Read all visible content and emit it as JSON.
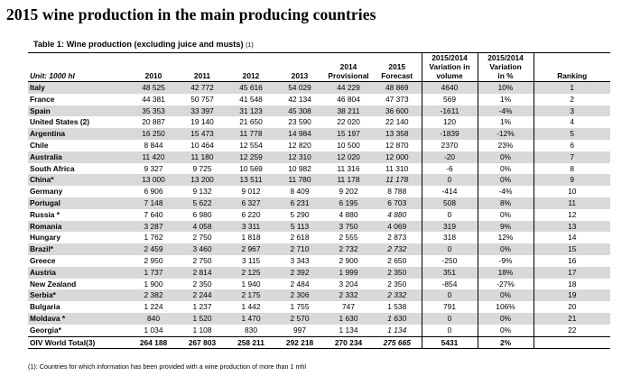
{
  "title": "2015 wine production in the main producing countries",
  "table_caption": "Table 1: Wine production (excluding juice and musts)",
  "table_caption_note": "(1)",
  "headers": {
    "unit": "Unit: 1000 hl",
    "y2010": "2010",
    "y2011": "2011",
    "y2012": "2012",
    "y2013": "2013",
    "y2014_line1": "2014",
    "y2014_line2": "Provisional",
    "y2015_line1": "2015",
    "y2015_line2": "Forecast",
    "var_vol_line1": "2015/2014",
    "var_vol_line2": "Variation in",
    "var_vol_line3": "volume",
    "var_pct_line1": "2015/2014",
    "var_pct_line2": "Variation",
    "var_pct_line3": "in %",
    "ranking": "Ranking"
  },
  "rows": [
    {
      "country": "Italy",
      "note": "",
      "v2010": "48 525",
      "v2011": "42 772",
      "v2012": "45 616",
      "v2013": "54 029",
      "v2014": "44 229",
      "v2015": "48 869",
      "var_vol": "4640",
      "var_pct": "10%",
      "rank": "1",
      "shade": true,
      "italic2015": false
    },
    {
      "country": "France",
      "note": "",
      "v2010": "44 381",
      "v2011": "50 757",
      "v2012": "41 548",
      "v2013": "42 134",
      "v2014": "46 804",
      "v2015": "47 373",
      "var_vol": "569",
      "var_pct": "1%",
      "rank": "2",
      "shade": false,
      "italic2015": false
    },
    {
      "country": "Spain",
      "note": "",
      "v2010": "35 353",
      "v2011": "33 397",
      "v2012": "31 123",
      "v2013": "45 308",
      "v2014": "38 211",
      "v2015": "36 600",
      "var_vol": "-1611",
      "var_pct": "-4%",
      "rank": "3",
      "shade": true,
      "italic2015": false
    },
    {
      "country": "United States",
      "note": "(2)",
      "v2010": "20 887",
      "v2011": "19 140",
      "v2012": "21 650",
      "v2013": "23 590",
      "v2014": "22 020",
      "v2015": "22 140",
      "var_vol": "120",
      "var_pct": "1%",
      "rank": "4",
      "shade": false,
      "italic2015": false
    },
    {
      "country": "Argentina",
      "note": "",
      "v2010": "16 250",
      "v2011": "15 473",
      "v2012": "11 778",
      "v2013": "14 984",
      "v2014": "15 197",
      "v2015": "13 358",
      "var_vol": "-1839",
      "var_pct": "-12%",
      "rank": "5",
      "shade": true,
      "italic2015": false
    },
    {
      "country": "Chile",
      "note": "",
      "v2010": "8 844",
      "v2011": "10 464",
      "v2012": "12 554",
      "v2013": "12 820",
      "v2014": "10 500",
      "v2015": "12 870",
      "var_vol": "2370",
      "var_pct": "23%",
      "rank": "6",
      "shade": false,
      "italic2015": false
    },
    {
      "country": "Australia",
      "note": "",
      "v2010": "11 420",
      "v2011": "11 180",
      "v2012": "12 259",
      "v2013": "12 310",
      "v2014": "12 020",
      "v2015": "12 000",
      "var_vol": "-20",
      "var_pct": "0%",
      "rank": "7",
      "shade": true,
      "italic2015": false
    },
    {
      "country": "South Africa",
      "note": "",
      "v2010": "9 327",
      "v2011": "9 725",
      "v2012": "10 569",
      "v2013": "10 982",
      "v2014": "11 316",
      "v2015": "11 310",
      "var_vol": "-6",
      "var_pct": "0%",
      "rank": "8",
      "shade": false,
      "italic2015": false
    },
    {
      "country": "China*",
      "note": "",
      "v2010": "13 000",
      "v2011": "13 200",
      "v2012": "13 511",
      "v2013": "11 780",
      "v2014": "11 178",
      "v2015": "11 178",
      "var_vol": "0",
      "var_pct": "0%",
      "rank": "9",
      "shade": true,
      "italic2015": true
    },
    {
      "country": "Germany",
      "note": "",
      "v2010": "6 906",
      "v2011": "9 132",
      "v2012": "9 012",
      "v2013": "8 409",
      "v2014": "9 202",
      "v2015": "8 788",
      "var_vol": "-414",
      "var_pct": "-4%",
      "rank": "10",
      "shade": false,
      "italic2015": false
    },
    {
      "country": "Portugal",
      "note": "",
      "v2010": "7 148",
      "v2011": "5 622",
      "v2012": "6 327",
      "v2013": "6 231",
      "v2014": "6 195",
      "v2015": "6 703",
      "var_vol": "508",
      "var_pct": "8%",
      "rank": "11",
      "shade": true,
      "italic2015": false
    },
    {
      "country": "Russia *",
      "note": "",
      "v2010": "7 640",
      "v2011": "6 980",
      "v2012": "6 220",
      "v2013": "5 290",
      "v2014": "4 880",
      "v2015": "4 880",
      "var_vol": "0",
      "var_pct": "0%",
      "rank": "12",
      "shade": false,
      "italic2015": true
    },
    {
      "country": "Romania",
      "note": "",
      "v2010": "3 287",
      "v2011": "4 058",
      "v2012": "3 311",
      "v2013": "5 113",
      "v2014": "3 750",
      "v2015": "4 069",
      "var_vol": "319",
      "var_pct": "9%",
      "rank": "13",
      "shade": true,
      "italic2015": false
    },
    {
      "country": "Hungary",
      "note": "",
      "v2010": "1 762",
      "v2011": "2 750",
      "v2012": "1 818",
      "v2013": "2 618",
      "v2014": "2 555",
      "v2015": "2 873",
      "var_vol": "318",
      "var_pct": "12%",
      "rank": "14",
      "shade": false,
      "italic2015": false
    },
    {
      "country": "Brazil*",
      "note": "",
      "v2010": "2 459",
      "v2011": "3 460",
      "v2012": "2 967",
      "v2013": "2 710",
      "v2014": "2 732",
      "v2015": "2 732",
      "var_vol": "0",
      "var_pct": "0%",
      "rank": "15",
      "shade": true,
      "italic2015": true
    },
    {
      "country": "Greece",
      "note": "",
      "v2010": "2 950",
      "v2011": "2 750",
      "v2012": "3 115",
      "v2013": "3 343",
      "v2014": "2 900",
      "v2015": "2 650",
      "var_vol": "-250",
      "var_pct": "-9%",
      "rank": "16",
      "shade": false,
      "italic2015": false
    },
    {
      "country": "Austria",
      "note": "",
      "v2010": "1 737",
      "v2011": "2 814",
      "v2012": "2 125",
      "v2013": "2 392",
      "v2014": "1 999",
      "v2015": "2 350",
      "var_vol": "351",
      "var_pct": "18%",
      "rank": "17",
      "shade": true,
      "italic2015": false
    },
    {
      "country": "New Zealand",
      "note": "",
      "v2010": "1 900",
      "v2011": "2 350",
      "v2012": "1 940",
      "v2013": "2 484",
      "v2014": "3 204",
      "v2015": "2 350",
      "var_vol": "-854",
      "var_pct": "-27%",
      "rank": "18",
      "shade": false,
      "italic2015": false
    },
    {
      "country": "Serbia*",
      "note": "",
      "v2010": "2 382",
      "v2011": "2 244",
      "v2012": "2 175",
      "v2013": "2 306",
      "v2014": "2 332",
      "v2015": "2 332",
      "var_vol": "0",
      "var_pct": "0%",
      "rank": "19",
      "shade": true,
      "italic2015": true
    },
    {
      "country": "Bulgaria",
      "note": "",
      "v2010": "1 224",
      "v2011": "1 237",
      "v2012": "1 442",
      "v2013": "1 755",
      "v2014": "747",
      "v2015": "1 538",
      "var_vol": "791",
      "var_pct": "106%",
      "rank": "20",
      "shade": false,
      "italic2015": false
    },
    {
      "country": "Moldava *",
      "note": "",
      "v2010": "840",
      "v2011": "1 520",
      "v2012": "1 470",
      "v2013": "2 570",
      "v2014": "1 630",
      "v2015": "1 630",
      "var_vol": "0",
      "var_pct": "0%",
      "rank": "21",
      "shade": true,
      "italic2015": true
    },
    {
      "country": "Georgia*",
      "note": "",
      "v2010": "1 034",
      "v2011": "1 108",
      "v2012": "830",
      "v2013": "997",
      "v2014": "1 134",
      "v2015": "1 134",
      "var_vol": "0",
      "var_pct": "0%",
      "rank": "22",
      "shade": false,
      "italic2015": true
    }
  ],
  "total": {
    "label": "OIV World Total",
    "note": "(3)",
    "v2010": "264 188",
    "v2011": "267 803",
    "v2012": "258 211",
    "v2013": "292 218",
    "v2014": "270 234",
    "v2015": "275 665",
    "var_vol": "5431",
    "var_pct": "2%"
  },
  "footnote": "(1): Countries for which information has been provided with a wine production of more than 1 mhl",
  "colors": {
    "shade": "#d9d9d9",
    "rule": "#000000"
  }
}
